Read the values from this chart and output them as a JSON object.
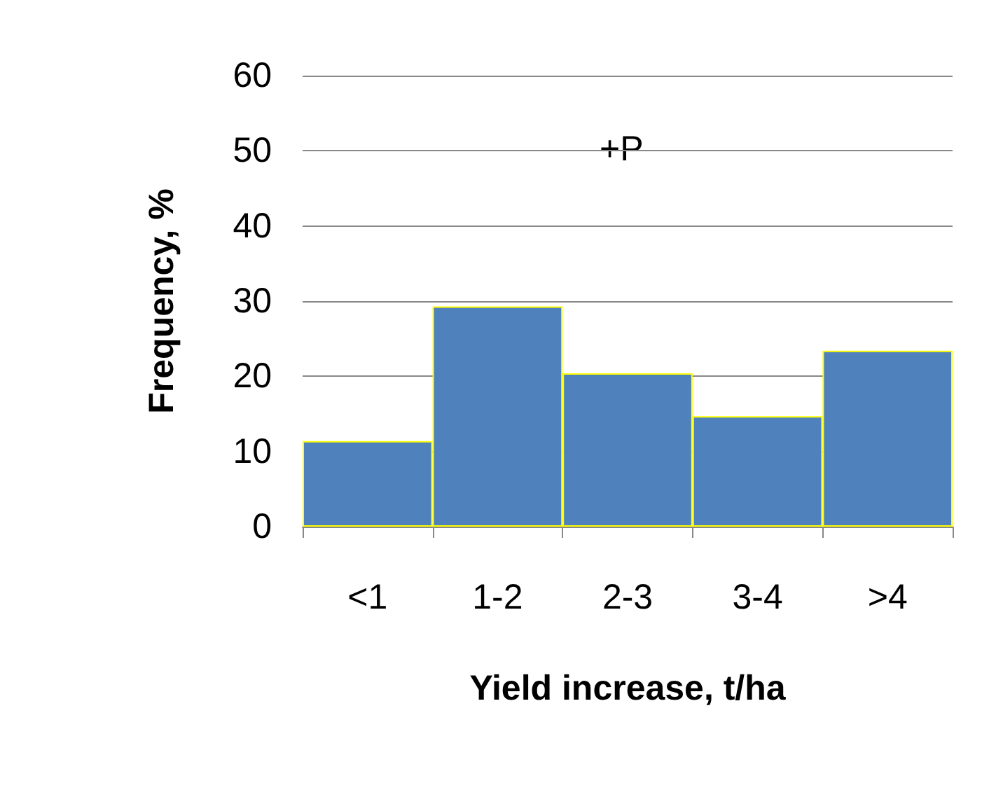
{
  "chart_data": {
    "type": "bar",
    "xlabel": "Yield increase, t/ha",
    "ylabel": "Frequency, %",
    "categories": [
      "<1",
      "1-2",
      "2-3",
      "3-4",
      ">4"
    ],
    "values": [
      11.4,
      29.3,
      20.4,
      14.7,
      23.4
    ],
    "color": "#4f81bd",
    "ylim": [
      0,
      60
    ],
    "yticks": [
      0,
      10,
      20,
      30,
      40,
      50,
      60
    ],
    "grid": "y",
    "annotations": [
      "+P"
    ]
  }
}
